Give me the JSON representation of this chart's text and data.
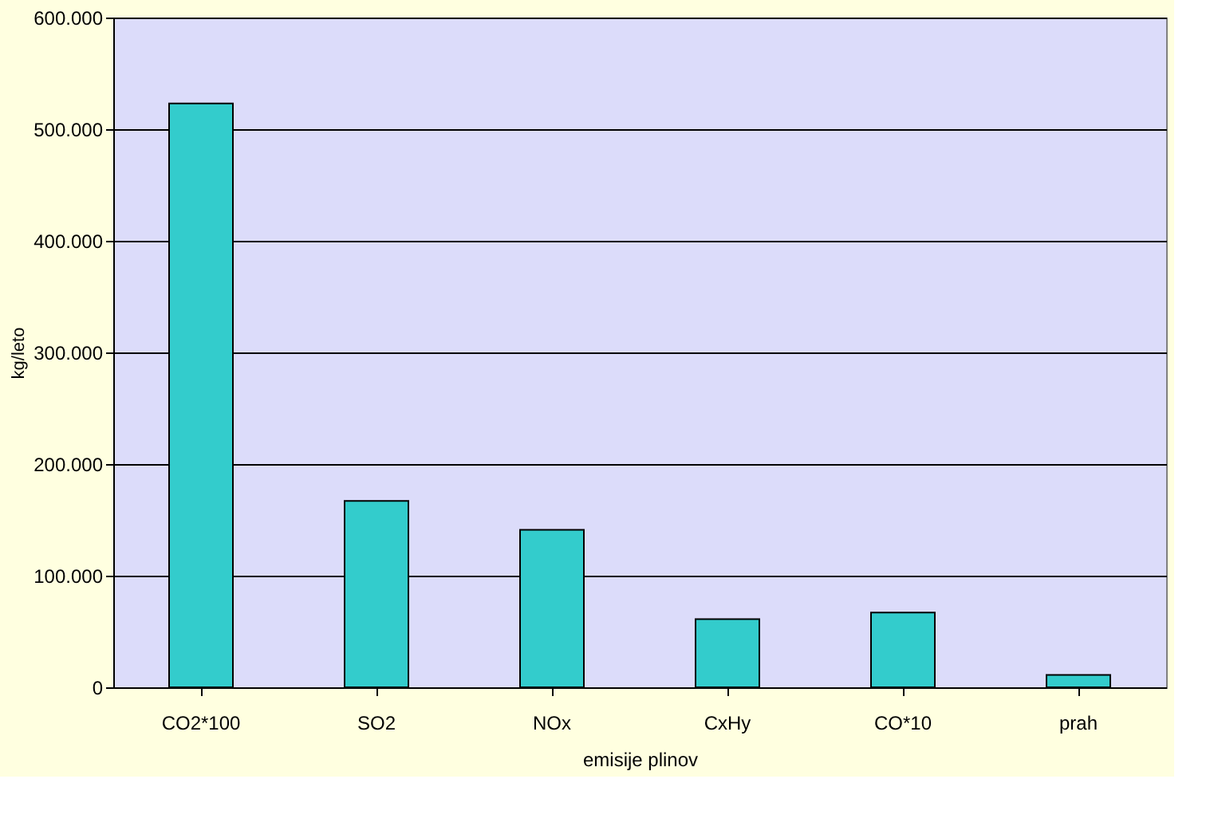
{
  "chart_data": {
    "type": "bar",
    "xlabel": "emisije plinov",
    "ylabel": "kg/leto",
    "categories": [
      "CO2*100",
      "SO2",
      "NOx",
      "CxHy",
      "CO*10",
      "prah"
    ],
    "values": [
      523000,
      167000,
      141000,
      61000,
      67000,
      11000
    ],
    "color": "#33cccc",
    "ylim": [
      0,
      600000
    ],
    "yticks": [
      0,
      {
        "value": 100000,
        "label": "100.000"
      },
      {
        "value": 200000,
        "label": "200.000"
      },
      {
        "value": 300000,
        "label": "300.000"
      },
      {
        "value": 400000,
        "label": "400.000"
      },
      {
        "value": 500000,
        "label": "500.000"
      },
      {
        "value": 600000,
        "label": "600.000"
      }
    ],
    "grid": "y"
  }
}
